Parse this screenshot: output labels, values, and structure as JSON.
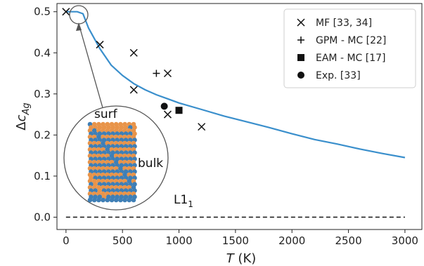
{
  "chart_data": {
    "type": "scatter",
    "xlabel": "T (K)",
    "ylabel": "Δc_Ag",
    "xlim": [
      -80,
      3150
    ],
    "ylim": [
      -0.03,
      0.52
    ],
    "x_ticks": [
      0,
      500,
      1000,
      1500,
      2000,
      2500,
      3000
    ],
    "y_ticks": [
      0.0,
      0.1,
      0.2,
      0.3,
      0.4,
      0.5
    ],
    "x_tick_labels": [
      "0",
      "500",
      "1000",
      "1500",
      "2000",
      "2500",
      "3000"
    ],
    "y_tick_labels": [
      "0.0",
      "0.1",
      "0.2",
      "0.3",
      "0.4",
      "0.5"
    ],
    "grid": false,
    "legend_position": "top-right",
    "line": {
      "color": "#3a8fcc",
      "x": [
        0,
        100,
        150,
        200,
        300,
        400,
        500,
        600,
        700,
        800,
        900,
        1000,
        1200,
        1400,
        1600,
        1800,
        2000,
        2200,
        2400,
        2600,
        2800,
        3000
      ],
      "y": [
        0.5,
        0.5,
        0.495,
        0.46,
        0.41,
        0.37,
        0.345,
        0.325,
        0.31,
        0.298,
        0.288,
        0.278,
        0.262,
        0.246,
        0.232,
        0.218,
        0.203,
        0.189,
        0.178,
        0.166,
        0.155,
        0.145
      ]
    },
    "baseline": {
      "y": 0.0,
      "x_start": 0,
      "x_end": 3000,
      "color": "#222222"
    },
    "series": [
      {
        "name": "MF [33, 34]",
        "marker": "x",
        "x": [
          0,
          300,
          600,
          600,
          900,
          900,
          1200
        ],
        "y": [
          0.5,
          0.42,
          0.4,
          0.31,
          0.35,
          0.25,
          0.22
        ]
      },
      {
        "name": "GPM - MC [22]",
        "marker": "+",
        "x": [
          800
        ],
        "y": [
          0.35
        ]
      },
      {
        "name": "EAM - MC [17]",
        "marker": "square",
        "x": [
          1000
        ],
        "y": [
          0.26
        ]
      },
      {
        "name": "Exp. [33]",
        "marker": "circle",
        "x": [
          870
        ],
        "y": [
          0.27
        ]
      }
    ],
    "annotations": {
      "callout_point": {
        "x": 50,
        "y": 0.5
      },
      "inset_labels": {
        "surface": "surf",
        "bulk": "bulk"
      },
      "phase_label": "L1",
      "phase_label_sub": "1",
      "atom_colors": {
        "blue": "#3f7fb6",
        "orange": "#e8944a"
      }
    }
  }
}
